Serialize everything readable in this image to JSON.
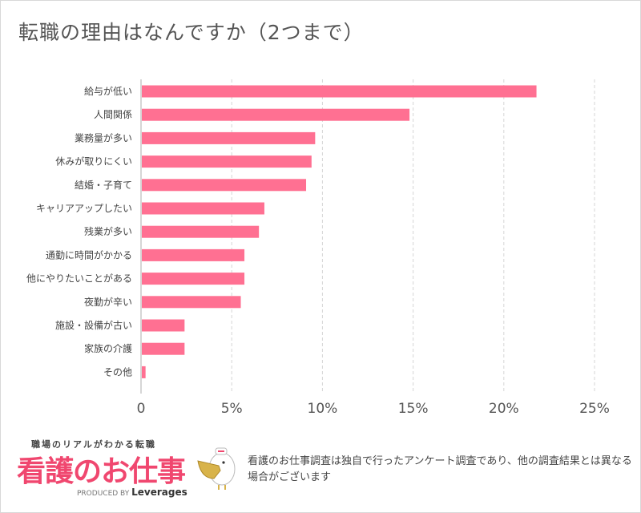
{
  "title": "転職の理由はなんですか（2つまで）",
  "chart_data": {
    "type": "bar",
    "orientation": "horizontal",
    "title": "転職の理由はなんですか（2つまで）",
    "categories": [
      "給与が低い",
      "人間関係",
      "業務量が多い",
      "休みが取りにくい",
      "結婚・子育て",
      "キャリアアップしたい",
      "残業が多い",
      "通勤に時間がかかる",
      "他にやりたいことがある",
      "夜勤が辛い",
      "施設・設備が古い",
      "家族の介護",
      "その他"
    ],
    "values": [
      21.8,
      14.8,
      9.6,
      9.4,
      9.1,
      6.8,
      6.5,
      5.7,
      5.7,
      5.5,
      2.4,
      2.4,
      0.25
    ],
    "xlim": [
      0,
      25
    ],
    "xticks": [
      0,
      5,
      10,
      15,
      20,
      25
    ],
    "xtick_labels": [
      "0",
      "5%",
      "10%",
      "15%",
      "20%",
      "25%"
    ],
    "xlabel": "",
    "ylabel": "",
    "grid": true,
    "bar_color": "#ff7092"
  },
  "footer": {
    "tagline": "職場のリアルがわかる転職",
    "brand": "看護のお仕事",
    "produced_by": "PRODUCED BY",
    "company": "Leverages",
    "note": "看護のお仕事調査は独自で行ったアンケート調査であり、他の調査結果とは異なる場合がございます"
  }
}
